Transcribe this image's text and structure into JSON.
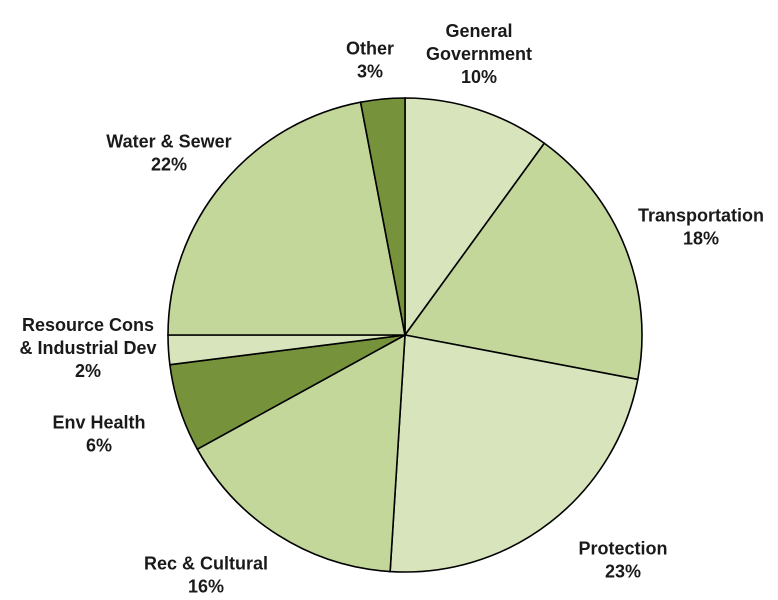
{
  "chart_data": {
    "type": "pie",
    "title": "",
    "slices": [
      {
        "label_lines": [
          "General",
          "Government"
        ],
        "pct_text": "10%",
        "value": 10,
        "color": "#d8e4bc"
      },
      {
        "label_lines": [
          "Transportation"
        ],
        "pct_text": "18%",
        "value": 18,
        "color": "#c4d79b"
      },
      {
        "label_lines": [
          "Protection"
        ],
        "pct_text": "23%",
        "value": 23,
        "color": "#d8e4bc"
      },
      {
        "label_lines": [
          "Rec & Cultural"
        ],
        "pct_text": "16%",
        "value": 16,
        "color": "#c4d79b"
      },
      {
        "label_lines": [
          "Env Health"
        ],
        "pct_text": "6%",
        "value": 6,
        "color": "#76933c"
      },
      {
        "label_lines": [
          "Resource Cons",
          "& Industrial Dev"
        ],
        "pct_text": "2%",
        "value": 2,
        "color": "#d8e4bc"
      },
      {
        "label_lines": [
          "Water & Sewer"
        ],
        "pct_text": "22%",
        "value": 22,
        "color": "#c4d79b"
      },
      {
        "label_lines": [
          "Other"
        ],
        "pct_text": "3%",
        "value": 3,
        "color": "#76933c"
      }
    ],
    "start_at": "top",
    "direction": "clockwise",
    "legend": "none",
    "data_labels": "outside"
  }
}
